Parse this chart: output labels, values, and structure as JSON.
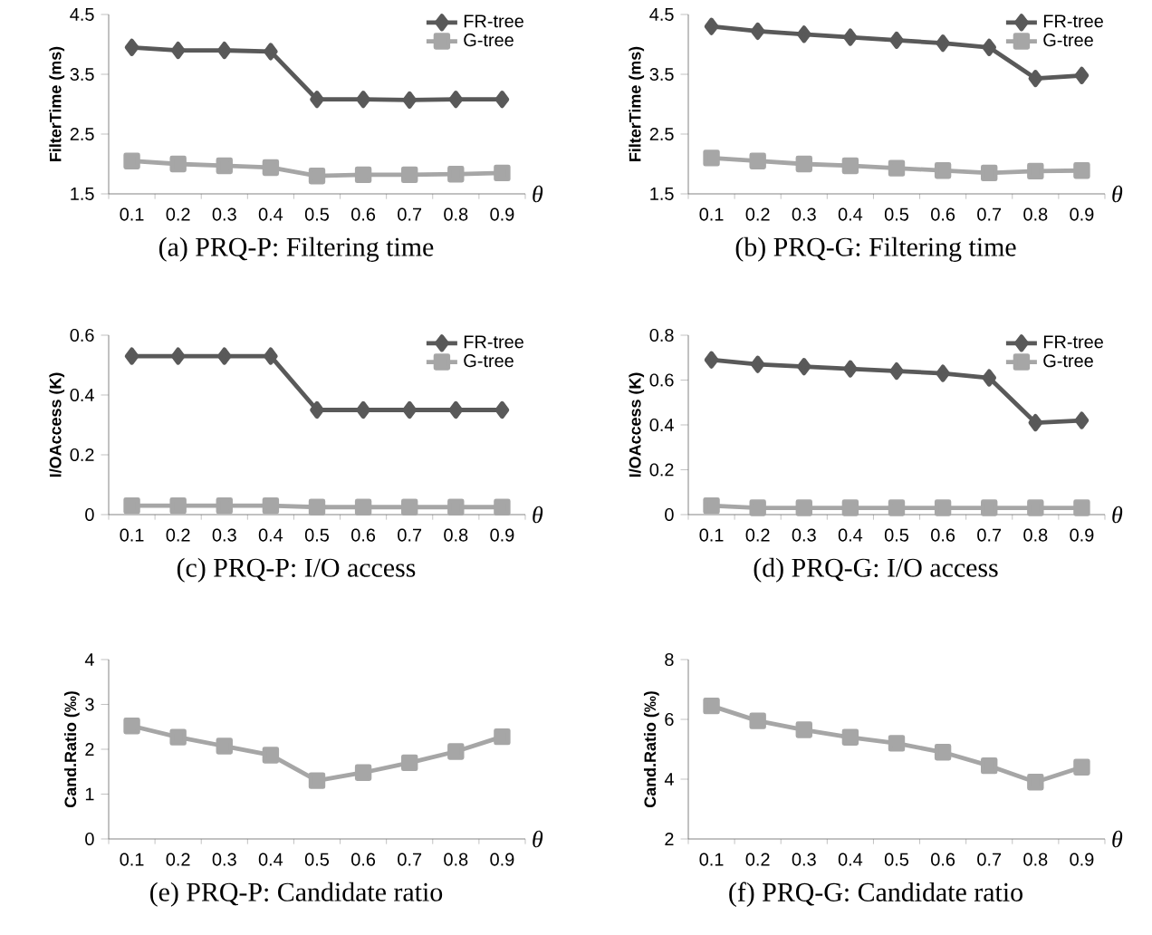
{
  "chart_data": [
    {
      "type": "line",
      "title": "(a) PRQ-P: Filtering time",
      "xlabel": "θ",
      "ylabel": "FilterTime (ms)",
      "categories": [
        "0.1",
        "0.2",
        "0.3",
        "0.4",
        "0.5",
        "0.6",
        "0.7",
        "0.8",
        "0.9"
      ],
      "ylim": [
        1.5,
        4.5
      ],
      "yticks": [
        1.5,
        2.5,
        3.5,
        4.5
      ],
      "legend": "top right",
      "series": [
        {
          "name": "FR-tree",
          "color": "#595959",
          "marker": "diamond",
          "values": [
            3.95,
            3.9,
            3.9,
            3.88,
            3.08,
            3.08,
            3.07,
            3.08,
            3.08
          ]
        },
        {
          "name": "G-tree",
          "color": "#a6a6a6",
          "marker": "square",
          "values": [
            2.05,
            2.0,
            1.97,
            1.94,
            1.8,
            1.82,
            1.82,
            1.83,
            1.85
          ]
        }
      ]
    },
    {
      "type": "line",
      "title": "(b) PRQ-G: Filtering time",
      "xlabel": "θ",
      "ylabel": "FilterTime (ms)",
      "categories": [
        "0.1",
        "0.2",
        "0.3",
        "0.4",
        "0.5",
        "0.6",
        "0.7",
        "0.8",
        "0.9"
      ],
      "ylim": [
        1.5,
        4.5
      ],
      "yticks": [
        1.5,
        2.5,
        3.5,
        4.5
      ],
      "legend": "top right",
      "series": [
        {
          "name": "FR-tree",
          "color": "#595959",
          "marker": "diamond",
          "values": [
            4.3,
            4.22,
            4.17,
            4.12,
            4.07,
            4.02,
            3.95,
            3.43,
            3.48
          ]
        },
        {
          "name": "G-tree",
          "color": "#a6a6a6",
          "marker": "square",
          "values": [
            2.1,
            2.05,
            2.0,
            1.97,
            1.93,
            1.89,
            1.85,
            1.88,
            1.89
          ]
        }
      ]
    },
    {
      "type": "line",
      "title": "(c) PRQ-P: I/O access",
      "xlabel": "θ",
      "ylabel": "I/OAccess (K)",
      "categories": [
        "0.1",
        "0.2",
        "0.3",
        "0.4",
        "0.5",
        "0.6",
        "0.7",
        "0.8",
        "0.9"
      ],
      "ylim": [
        0,
        0.6
      ],
      "yticks": [
        0,
        0.2,
        0.4,
        0.6
      ],
      "legend": "top right",
      "series": [
        {
          "name": "FR-tree",
          "color": "#595959",
          "marker": "diamond",
          "values": [
            0.53,
            0.53,
            0.53,
            0.53,
            0.35,
            0.35,
            0.35,
            0.35,
            0.35
          ]
        },
        {
          "name": "G-tree",
          "color": "#a6a6a6",
          "marker": "square",
          "values": [
            0.03,
            0.03,
            0.03,
            0.03,
            0.025,
            0.025,
            0.025,
            0.025,
            0.025
          ]
        }
      ]
    },
    {
      "type": "line",
      "title": "(d) PRQ-G: I/O access",
      "xlabel": "θ",
      "ylabel": "I/OAccess (K)",
      "categories": [
        "0.1",
        "0.2",
        "0.3",
        "0.4",
        "0.5",
        "0.6",
        "0.7",
        "0.8",
        "0.9"
      ],
      "ylim": [
        0,
        0.8
      ],
      "yticks": [
        0,
        0.2,
        0.4,
        0.6,
        0.8
      ],
      "legend": "top right",
      "series": [
        {
          "name": "FR-tree",
          "color": "#595959",
          "marker": "diamond",
          "values": [
            0.69,
            0.67,
            0.66,
            0.65,
            0.64,
            0.63,
            0.61,
            0.41,
            0.42
          ]
        },
        {
          "name": "G-tree",
          "color": "#a6a6a6",
          "marker": "square",
          "values": [
            0.04,
            0.03,
            0.03,
            0.03,
            0.03,
            0.03,
            0.03,
            0.03,
            0.03
          ]
        }
      ]
    },
    {
      "type": "line",
      "title": "(e) PRQ-P: Candidate ratio",
      "xlabel": "θ",
      "ylabel": "Cand.Ratio (‰)",
      "categories": [
        "0.1",
        "0.2",
        "0.3",
        "0.4",
        "0.5",
        "0.6",
        "0.7",
        "0.8",
        "0.9"
      ],
      "ylim": [
        0,
        4
      ],
      "yticks": [
        0,
        1,
        2,
        3,
        4
      ],
      "series": [
        {
          "color": "#a6a6a6",
          "marker": "square",
          "values": [
            2.52,
            2.27,
            2.07,
            1.87,
            1.3,
            1.48,
            1.7,
            1.95,
            2.28
          ]
        }
      ]
    },
    {
      "type": "line",
      "title": "(f) PRQ-G: Candidate ratio",
      "xlabel": "θ",
      "ylabel": "Cand.Ratio (‰)",
      "categories": [
        "0.1",
        "0.2",
        "0.3",
        "0.4",
        "0.5",
        "0.6",
        "0.7",
        "0.8",
        "0.9"
      ],
      "ylim": [
        2,
        8
      ],
      "yticks": [
        2,
        4,
        6,
        8
      ],
      "series": [
        {
          "color": "#a6a6a6",
          "marker": "square",
          "values": [
            6.45,
            5.95,
            5.65,
            5.4,
            5.2,
            4.9,
            4.45,
            3.9,
            4.4
          ]
        }
      ]
    }
  ]
}
